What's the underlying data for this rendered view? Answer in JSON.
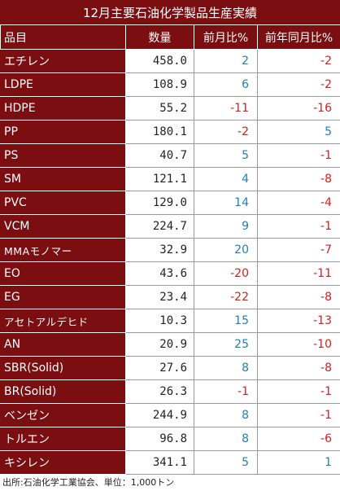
{
  "title": "12月主要石油化学製品生産実績",
  "headers": [
    "品目",
    "数量",
    "前月比%",
    "前年同月比%"
  ],
  "rows": [
    {
      "name": "エチレン",
      "qty": "458.0",
      "mom": "2",
      "yoy": "-2"
    },
    {
      "name": "LDPE",
      "qty": "108.9",
      "mom": "6",
      "yoy": "-2"
    },
    {
      "name": "HDPE",
      "qty": "55.2",
      "mom": "-11",
      "yoy": "-16"
    },
    {
      "name": "PP",
      "qty": "180.1",
      "mom": "-2",
      "yoy": "5"
    },
    {
      "name": "PS",
      "qty": "40.7",
      "mom": "5",
      "yoy": "-1"
    },
    {
      "name": "SM",
      "qty": "121.1",
      "mom": "4",
      "yoy": "-8"
    },
    {
      "name": "PVC",
      "qty": "129.0",
      "mom": "14",
      "yoy": "-4"
    },
    {
      "name": "VCM",
      "qty": "224.7",
      "mom": "9",
      "yoy": "-1"
    },
    {
      "name": "MMAモノマー",
      "qty": "32.9",
      "mom": "20",
      "yoy": "-7"
    },
    {
      "name": "EO",
      "qty": "43.6",
      "mom": "-20",
      "yoy": "-11"
    },
    {
      "name": "EG",
      "qty": "23.4",
      "mom": "-22",
      "yoy": "-8"
    },
    {
      "name": "アセトアルデヒド",
      "qty": "10.3",
      "mom": "15",
      "yoy": "-13"
    },
    {
      "name": "AN",
      "qty": "20.9",
      "mom": "25",
      "yoy": "-10"
    },
    {
      "name": "SBR(Solid)",
      "qty": "27.6",
      "mom": "8",
      "yoy": "-8"
    },
    {
      "name": "BR(Solid)",
      "qty": "26.3",
      "mom": "-1",
      "yoy": "-1"
    },
    {
      "name": "ベンゼン",
      "qty": "244.9",
      "mom": "8",
      "yoy": "-1"
    },
    {
      "name": "トルエン",
      "qty": "96.8",
      "mom": "8",
      "yoy": "-6"
    },
    {
      "name": "キシレン",
      "qty": "341.1",
      "mom": "5",
      "yoy": "1"
    }
  ],
  "source": "出所:石油化学工業協会、単位：1,000トン",
  "colors": {
    "header_bg": "#7b0e10",
    "positive": "#1f7fc0",
    "negative": "#d42020"
  }
}
